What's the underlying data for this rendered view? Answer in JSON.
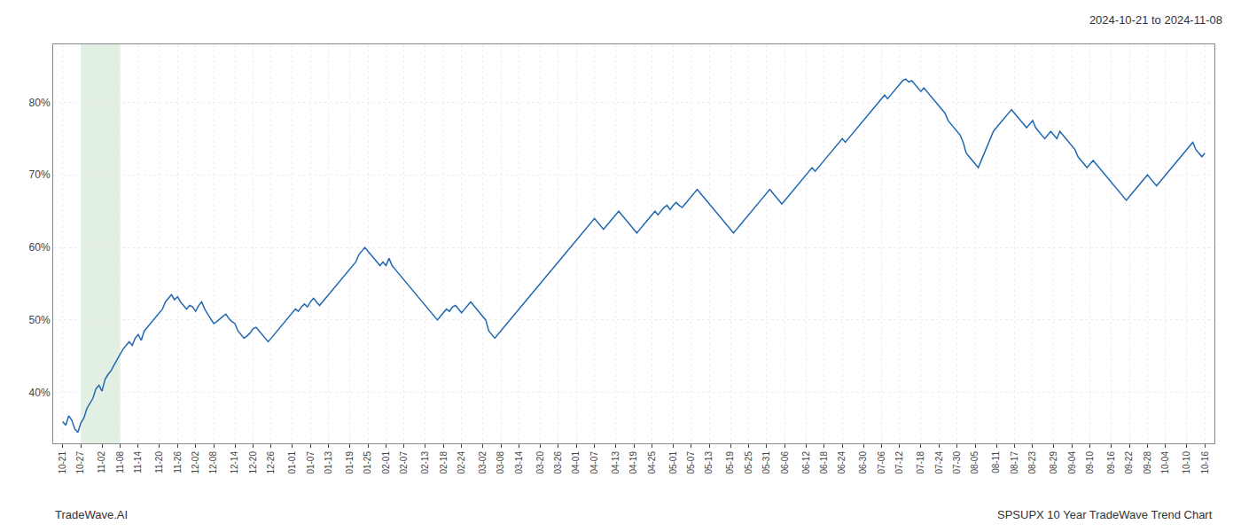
{
  "chart_data": {
    "type": "line",
    "title": "2024-10-21 to 2024-11-08",
    "annotations": [
      "TradeWave.AI",
      "SPSUPX 10 Year TradeWave Trend Chart"
    ],
    "categories": [
      "10-21",
      null,
      null,
      null,
      null,
      null,
      "10-27",
      null,
      null,
      null,
      null,
      null,
      null,
      "11-02",
      null,
      null,
      null,
      null,
      null,
      "11-08",
      null,
      null,
      null,
      null,
      null,
      "11-14",
      null,
      null,
      null,
      null,
      null,
      null,
      "11-20",
      null,
      null,
      null,
      null,
      null,
      "11-26",
      null,
      null,
      null,
      null,
      null,
      "12-02",
      null,
      null,
      null,
      null,
      null,
      "12-08",
      null,
      null,
      null,
      null,
      null,
      null,
      "12-14",
      null,
      null,
      null,
      null,
      null,
      "12-20",
      null,
      null,
      null,
      null,
      null,
      "12-26",
      null,
      null,
      null,
      null,
      null,
      null,
      "01-01",
      null,
      null,
      null,
      null,
      null,
      "01-07",
      null,
      null,
      null,
      null,
      null,
      "01-13",
      null,
      null,
      null,
      null,
      null,
      null,
      "01-19",
      null,
      null,
      null,
      null,
      null,
      "01-25",
      null,
      null,
      null,
      null,
      null,
      "02-01",
      null,
      null,
      null,
      null,
      null,
      "02-07",
      null,
      null,
      null,
      null,
      null,
      null,
      "02-13",
      null,
      null,
      null,
      null,
      null,
      "02-18",
      null,
      null,
      null,
      null,
      null,
      "02-24",
      null,
      null,
      null,
      null,
      null,
      null,
      "03-02",
      null,
      null,
      null,
      null,
      null,
      "03-08",
      null,
      null,
      null,
      null,
      null,
      "03-14",
      null,
      null,
      null,
      null,
      null,
      null,
      "03-20",
      null,
      null,
      null,
      null,
      null,
      "03-26",
      null,
      null,
      null,
      null,
      null,
      "04-01",
      null,
      null,
      null,
      null,
      null,
      "04-07",
      null,
      null,
      null,
      null,
      null,
      null,
      "04-13",
      null,
      null,
      null,
      null,
      null,
      "04-19",
      null,
      null,
      null,
      null,
      null,
      "04-25",
      null,
      null,
      null,
      null,
      null,
      null,
      "05-01",
      null,
      null,
      null,
      null,
      null,
      "05-07",
      null,
      null,
      null,
      null,
      null,
      "05-13",
      null,
      null,
      null,
      null,
      null,
      null,
      "05-19",
      null,
      null,
      null,
      null,
      null,
      "05-25",
      null,
      null,
      null,
      null,
      null,
      "05-31",
      null,
      null,
      null,
      null,
      null,
      "06-06",
      null,
      null,
      null,
      null,
      null,
      null,
      "06-12",
      null,
      null,
      null,
      null,
      null,
      "06-18",
      null,
      null,
      null,
      null,
      null,
      "06-24",
      null,
      null,
      null,
      null,
      null,
      null,
      "06-30",
      null,
      null,
      null,
      null,
      null,
      "07-06",
      null,
      null,
      null,
      null,
      null,
      "07-12",
      null,
      null,
      null,
      null,
      null,
      null,
      "07-18",
      null,
      null,
      null,
      null,
      null,
      "07-24",
      null,
      null,
      null,
      null,
      null,
      "07-30",
      null,
      null,
      null,
      null,
      null,
      "08-05",
      null,
      null,
      null,
      null,
      null,
      null,
      "08-11",
      null,
      null,
      null,
      null,
      null,
      "08-17",
      null,
      null,
      null,
      null,
      null,
      "08-23",
      null,
      null,
      null,
      null,
      null,
      null,
      "08-29",
      null,
      null,
      null,
      null,
      null,
      "09-04",
      null,
      null,
      null,
      null,
      null,
      "09-10",
      null,
      null,
      null,
      null,
      null,
      null,
      "09-16",
      null,
      null,
      null,
      null,
      null,
      "09-22",
      null,
      null,
      null,
      null,
      null,
      "09-28",
      null,
      null,
      null,
      null,
      null,
      "10-04",
      null,
      null,
      null,
      null,
      null,
      null,
      "10-10",
      null,
      null,
      null,
      null,
      null,
      "10-16"
    ],
    "values": [
      36.0,
      35.5,
      36.8,
      36.2,
      35.0,
      34.5,
      35.8,
      36.5,
      37.8,
      38.5,
      39.2,
      40.5,
      41.0,
      40.2,
      41.8,
      42.5,
      43.0,
      43.8,
      44.5,
      45.2,
      46.0,
      46.5,
      47.0,
      46.5,
      47.5,
      48.0,
      47.2,
      48.5,
      49.0,
      49.5,
      50.0,
      50.5,
      51.0,
      51.5,
      52.5,
      53.0,
      53.5,
      52.8,
      53.2,
      52.5,
      52.0,
      51.5,
      52.0,
      51.8,
      51.2,
      52.0,
      52.5,
      51.5,
      50.8,
      50.2,
      49.5,
      49.8,
      50.2,
      50.5,
      50.8,
      50.2,
      49.8,
      49.5,
      48.5,
      48.0,
      47.5,
      47.8,
      48.2,
      48.8,
      49.0,
      48.5,
      48.0,
      47.5,
      47.0,
      47.5,
      48.0,
      48.5,
      49.0,
      49.5,
      50.0,
      50.5,
      51.0,
      51.5,
      51.2,
      51.8,
      52.2,
      51.8,
      52.5,
      53.0,
      52.5,
      52.0,
      52.5,
      53.0,
      53.5,
      54.0,
      54.5,
      55.0,
      55.5,
      56.0,
      56.5,
      57.0,
      57.5,
      58.0,
      59.0,
      59.5,
      60.0,
      59.5,
      59.0,
      58.5,
      58.0,
      57.5,
      58.0,
      57.5,
      58.5,
      57.5,
      57.0,
      56.5,
      56.0,
      55.5,
      55.0,
      54.5,
      54.0,
      53.5,
      53.0,
      52.5,
      52.0,
      51.5,
      51.0,
      50.5,
      50.0,
      50.5,
      51.0,
      51.5,
      51.2,
      51.8,
      52.0,
      51.5,
      51.0,
      51.5,
      52.0,
      52.5,
      52.0,
      51.5,
      51.0,
      50.5,
      50.0,
      48.5,
      48.0,
      47.5,
      48.0,
      48.5,
      49.0,
      49.5,
      50.0,
      50.5,
      51.0,
      51.5,
      52.0,
      52.5,
      53.0,
      53.5,
      54.0,
      54.5,
      55.0,
      55.5,
      56.0,
      56.5,
      57.0,
      57.5,
      58.0,
      58.5,
      59.0,
      59.5,
      60.0,
      60.5,
      61.0,
      61.5,
      62.0,
      62.5,
      63.0,
      63.5,
      64.0,
      63.5,
      63.0,
      62.5,
      63.0,
      63.5,
      64.0,
      64.5,
      65.0,
      64.5,
      64.0,
      63.5,
      63.0,
      62.5,
      62.0,
      62.5,
      63.0,
      63.5,
      64.0,
      64.5,
      65.0,
      64.5,
      65.0,
      65.5,
      65.8,
      65.2,
      65.8,
      66.2,
      65.8,
      65.5,
      66.0,
      66.5,
      67.0,
      67.5,
      68.0,
      67.5,
      67.0,
      66.5,
      66.0,
      65.5,
      65.0,
      64.5,
      64.0,
      63.5,
      63.0,
      62.5,
      62.0,
      62.5,
      63.0,
      63.5,
      64.0,
      64.5,
      65.0,
      65.5,
      66.0,
      66.5,
      67.0,
      67.5,
      68.0,
      67.5,
      67.0,
      66.5,
      66.0,
      66.5,
      67.0,
      67.5,
      68.0,
      68.5,
      69.0,
      69.5,
      70.0,
      70.5,
      71.0,
      70.5,
      71.0,
      71.5,
      72.0,
      72.5,
      73.0,
      73.5,
      74.0,
      74.5,
      75.0,
      74.5,
      75.0,
      75.5,
      76.0,
      76.5,
      77.0,
      77.5,
      78.0,
      78.5,
      79.0,
      79.5,
      80.0,
      80.5,
      81.0,
      80.5,
      81.0,
      81.5,
      82.0,
      82.5,
      83.0,
      83.2,
      82.8,
      83.0,
      82.5,
      82.0,
      81.5,
      82.0,
      81.5,
      81.0,
      80.5,
      80.0,
      79.5,
      79.0,
      78.5,
      77.5,
      77.0,
      76.5,
      76.0,
      75.5,
      74.5,
      73.0,
      72.5,
      72.0,
      71.5,
      71.0,
      72.0,
      73.0,
      74.0,
      75.0,
      76.0,
      76.5,
      77.0,
      77.5,
      78.0,
      78.5,
      79.0,
      78.5,
      78.0,
      77.5,
      77.0,
      76.5,
      77.0,
      77.5,
      76.5,
      76.0,
      75.5,
      75.0,
      75.5,
      76.0,
      75.5,
      75.0,
      76.0,
      75.5,
      75.0,
      74.5,
      74.0,
      73.5,
      72.5,
      72.0,
      71.5,
      71.0,
      71.5,
      72.0,
      71.5,
      71.0,
      70.5,
      70.0,
      69.5,
      69.0,
      68.5,
      68.0,
      67.5,
      67.0,
      66.5,
      67.0,
      67.5,
      68.0,
      68.5,
      69.0,
      69.5,
      70.0,
      69.5,
      69.0,
      68.5,
      69.0,
      69.5,
      70.0,
      70.5,
      71.0,
      71.5,
      72.0,
      72.5,
      73.0,
      73.5,
      74.0,
      74.5,
      73.5,
      73.0,
      72.5,
      73.0
    ],
    "color": "#2068b0",
    "ylim": [
      33,
      88
    ],
    "yticks": [
      {
        "value": 40,
        "label": "40%"
      },
      {
        "value": 50,
        "label": "50%"
      },
      {
        "value": 60,
        "label": "60%"
      },
      {
        "value": 70,
        "label": "70%"
      },
      {
        "value": 80,
        "label": "80%"
      }
    ],
    "grid": true,
    "band": {
      "start": "10-27",
      "end": "11-08",
      "color": "#d6ead9"
    }
  }
}
